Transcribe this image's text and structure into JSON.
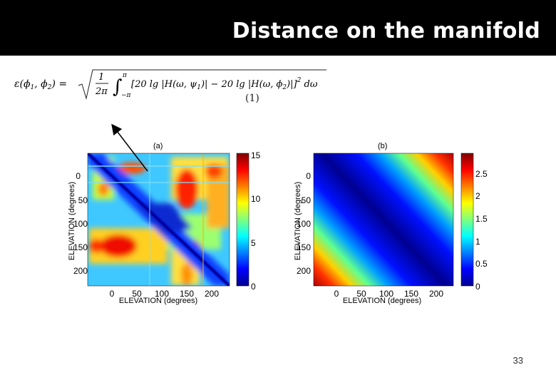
{
  "slide": {
    "title": "Distance on the manifold",
    "page_number": "33",
    "equation_number": "(1)",
    "title_bar_color": "#000000"
  },
  "equation": {
    "lhs": "ε(ϕ1, ϕ2) =",
    "radicand": "1/2π ∫−π..π [20 lg |H(ω, ψ1)| − 20 lg |H(ω, ϕ2)|]² dω"
  },
  "chart_data": [
    {
      "type": "heatmap",
      "panel_label": "(a)",
      "xlabel": "ELEVATION (degrees)",
      "ylabel": "ELEVATION (degrees)",
      "xticks": [
        "0",
        "50",
        "100",
        "150",
        "200"
      ],
      "yticks": [
        "0",
        "50",
        "100",
        "150",
        "200"
      ],
      "colorbar": {
        "ticks": [
          "15",
          "10",
          "5",
          "0"
        ],
        "range": [
          0,
          15
        ]
      },
      "axis_range": [
        -45,
        230
      ],
      "description_values": "distance matrix; zero diagonal, high values near elevation ~15-40 and ~145-165"
    },
    {
      "type": "heatmap",
      "panel_label": "(b)",
      "xlabel": "ELEVATION (degrees)",
      "ylabel": "ELEVATION (degrees)",
      "xticks": [
        "0",
        "50",
        "100",
        "150",
        "200"
      ],
      "yticks": [
        "0",
        "50",
        "100",
        "150",
        "200"
      ],
      "colorbar": {
        "ticks": [
          "2.5",
          "2",
          "1.5",
          "1",
          "0.5",
          "0"
        ],
        "range": [
          0,
          2.8
        ]
      },
      "axis_range": [
        -45,
        230
      ],
      "description_values": "smooth distance, zero along diagonal, maximum at opposite corners"
    }
  ]
}
